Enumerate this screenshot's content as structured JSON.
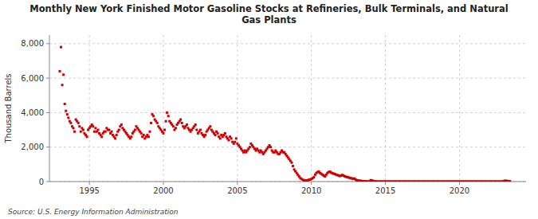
{
  "chart_data": {
    "type": "scatter",
    "title": "Monthly New York Finished Motor Gasoline Stocks at Refineries, Bulk Terminals, and Natural\nGas Plants",
    "y_label": "Thousand Barrels",
    "annotations": [
      "Source: U.S. Energy Information Administration"
    ],
    "color": "#cc0000",
    "marker": "square",
    "grid": true,
    "xlim": [
      1992.3,
      2024.5
    ],
    "ylim": [
      0,
      8500
    ],
    "xticks": [
      1995,
      2000,
      2005,
      2010,
      2015,
      2020
    ],
    "yticks": [
      0,
      {
        "value": 2000,
        "label": "2,000"
      },
      {
        "value": 4000,
        "label": "4,000"
      },
      {
        "value": 6000,
        "label": "6,000"
      },
      {
        "value": 8000,
        "label": "8,000"
      }
    ],
    "x": [
      1993,
      1993.0833333333333,
      1993.1666666666667,
      1993.25,
      1993.3333333333333,
      1993.4166666666667,
      1993.5,
      1993.5833333333333,
      1993.6666666666667,
      1993.75,
      1993.8333333333333,
      1993.9166666666667,
      1994,
      1994.0833333333333,
      1994.1666666666667,
      1994.25,
      1994.3333333333333,
      1994.4166666666667,
      1994.5,
      1994.5833333333333,
      1994.6666666666667,
      1994.75,
      1994.8333333333333,
      1994.9166666666667,
      1995,
      1995.0833333333333,
      1995.1666666666667,
      1995.25,
      1995.3333333333333,
      1995.4166666666667,
      1995.5,
      1995.5833333333333,
      1995.6666666666667,
      1995.75,
      1995.8333333333333,
      1995.9166666666667,
      1996,
      1996.0833333333333,
      1996.1666666666667,
      1996.25,
      1996.3333333333333,
      1996.4166666666667,
      1996.5,
      1996.5833333333333,
      1996.6666666666667,
      1996.75,
      1996.8333333333333,
      1996.9166666666667,
      1997,
      1997.0833333333333,
      1997.1666666666667,
      1997.25,
      1997.3333333333333,
      1997.4166666666667,
      1997.5,
      1997.5833333333333,
      1997.6666666666667,
      1997.75,
      1997.8333333333333,
      1997.9166666666667,
      1998,
      1998.0833333333333,
      1998.1666666666667,
      1998.25,
      1998.3333333333333,
      1998.4166666666667,
      1998.5,
      1998.5833333333333,
      1998.6666666666667,
      1998.75,
      1998.8333333333333,
      1998.9166666666667,
      1999,
      1999.0833333333333,
      1999.1666666666667,
      1999.25,
      1999.3333333333333,
      1999.4166666666667,
      1999.5,
      1999.5833333333333,
      1999.6666666666667,
      1999.75,
      1999.8333333333333,
      1999.9166666666667,
      2000,
      2000.0833333333333,
      2000.1666666666667,
      2000.25,
      2000.3333333333333,
      2000.4166666666667,
      2000.5,
      2000.5833333333333,
      2000.6666666666667,
      2000.75,
      2000.8333333333333,
      2000.9166666666667,
      2001,
      2001.0833333333333,
      2001.1666666666667,
      2001.25,
      2001.3333333333333,
      2001.4166666666667,
      2001.5,
      2001.5833333333333,
      2001.6666666666667,
      2001.75,
      2001.8333333333333,
      2001.9166666666667,
      2002,
      2002.0833333333333,
      2002.1666666666667,
      2002.25,
      2002.3333333333333,
      2002.4166666666667,
      2002.5,
      2002.5833333333333,
      2002.6666666666667,
      2002.75,
      2002.8333333333333,
      2002.9166666666667,
      2003,
      2003.0833333333333,
      2003.1666666666667,
      2003.25,
      2003.3333333333333,
      2003.4166666666667,
      2003.5,
      2003.5833333333333,
      2003.6666666666667,
      2003.75,
      2003.8333333333333,
      2003.9166666666667,
      2004,
      2004.0833333333333,
      2004.1666666666667,
      2004.25,
      2004.3333333333333,
      2004.4166666666667,
      2004.5,
      2004.5833333333333,
      2004.6666666666667,
      2004.75,
      2004.8333333333333,
      2004.9166666666667,
      2005,
      2005.0833333333333,
      2005.1666666666667,
      2005.25,
      2005.3333333333333,
      2005.4166666666667,
      2005.5,
      2005.5833333333333,
      2005.6666666666667,
      2005.75,
      2005.8333333333333,
      2005.9166666666667,
      2006,
      2006.0833333333333,
      2006.1666666666667,
      2006.25,
      2006.3333333333333,
      2006.4166666666667,
      2006.5,
      2006.5833333333333,
      2006.6666666666667,
      2006.75,
      2006.8333333333333,
      2006.9166666666667,
      2007,
      2007.0833333333333,
      2007.1666666666667,
      2007.25,
      2007.3333333333333,
      2007.4166666666667,
      2007.5,
      2007.5833333333333,
      2007.6666666666667,
      2007.75,
      2007.8333333333333,
      2007.9166666666667,
      2008,
      2008.0833333333333,
      2008.1666666666667,
      2008.25,
      2008.3333333333333,
      2008.4166666666667,
      2008.5,
      2008.5833333333333,
      2008.6666666666667,
      2008.75,
      2008.8333333333333,
      2008.9166666666667,
      2009,
      2009.0833333333333,
      2009.1666666666667,
      2009.25,
      2009.3333333333333,
      2009.4166666666667,
      2009.5,
      2009.5833333333333,
      2009.6666666666667,
      2009.75,
      2009.8333333333333,
      2009.9166666666667,
      2010,
      2010.0833333333333,
      2010.1666666666667,
      2010.25,
      2010.3333333333333,
      2010.4166666666667,
      2010.5,
      2010.5833333333333,
      2010.6666666666667,
      2010.75,
      2010.8333333333333,
      2010.9166666666667,
      2011,
      2011.0833333333333,
      2011.1666666666667,
      2011.25,
      2011.3333333333333,
      2011.4166666666667,
      2011.5,
      2011.5833333333333,
      2011.6666666666667,
      2011.75,
      2011.8333333333333,
      2011.9166666666667,
      2012,
      2012.0833333333333,
      2012.1666666666667,
      2012.25,
      2012.3333333333333,
      2012.4166666666667,
      2012.5,
      2012.5833333333333,
      2012.6666666666667,
      2012.75,
      2012.8333333333333,
      2012.9166666666667,
      2013,
      2013.0833333333333,
      2013.1666666666667,
      2013.25,
      2013.3333333333333,
      2013.4166666666667,
      2013.5,
      2013.5833333333333,
      2013.6666666666667,
      2013.75,
      2013.8333333333333,
      2013.9166666666667,
      2014,
      2014.0833333333333,
      2014.1666666666667,
      2014.25,
      2014.3333333333333,
      2014.4166666666667,
      2014.5,
      2014.5833333333333,
      2014.6666666666667,
      2014.75,
      2014.8333333333333,
      2014.9166666666667,
      2015,
      2015.0833333333333,
      2015.1666666666667,
      2015.25,
      2015.3333333333333,
      2015.4166666666667,
      2015.5,
      2015.5833333333333,
      2015.6666666666667,
      2015.75,
      2015.8333333333333,
      2015.9166666666667,
      2016,
      2016.0833333333333,
      2016.1666666666667,
      2016.25,
      2016.3333333333333,
      2016.4166666666667,
      2016.5,
      2016.5833333333333,
      2016.6666666666667,
      2016.75,
      2016.8333333333333,
      2016.9166666666667,
      2017,
      2017.0833333333333,
      2017.1666666666667,
      2017.25,
      2017.3333333333333,
      2017.4166666666667,
      2017.5,
      2017.5833333333333,
      2017.6666666666667,
      2017.75,
      2017.8333333333333,
      2017.9166666666667,
      2018,
      2018.0833333333333,
      2018.1666666666667,
      2018.25,
      2018.3333333333333,
      2018.4166666666667,
      2018.5,
      2018.5833333333333,
      2018.6666666666667,
      2018.75,
      2018.8333333333333,
      2018.9166666666667,
      2019,
      2019.0833333333333,
      2019.1666666666667,
      2019.25,
      2019.3333333333333,
      2019.4166666666667,
      2019.5,
      2019.5833333333333,
      2019.6666666666667,
      2019.75,
      2019.8333333333333,
      2019.9166666666667,
      2020,
      2020.0833333333333,
      2020.1666666666667,
      2020.25,
      2020.3333333333333,
      2020.4166666666667,
      2020.5,
      2020.5833333333333,
      2020.6666666666667,
      2020.75,
      2020.8333333333333,
      2020.9166666666667,
      2021,
      2021.0833333333333,
      2021.1666666666667,
      2021.25,
      2021.3333333333333,
      2021.4166666666667,
      2021.5,
      2021.5833333333333,
      2021.6666666666667,
      2021.75,
      2021.8333333333333,
      2021.9166666666667,
      2022,
      2022.0833333333333,
      2022.1666666666667,
      2022.25,
      2022.3333333333333,
      2022.4166666666667,
      2022.5,
      2022.5833333333333,
      2022.6666666666667,
      2022.75,
      2022.8333333333333,
      2022.9166666666667,
      2023,
      2023.0833333333333,
      2023.1666666666667,
      2023.25,
      2023.3333333333333,
      2023.4166666666667
    ],
    "values": [
      6400,
      7800,
      5600,
      6200,
      4500,
      4100,
      3900,
      3700,
      3500,
      3400,
      3200,
      3100,
      2900,
      3600,
      3500,
      3400,
      3200,
      2900,
      3100,
      3000,
      2800,
      2700,
      2600,
      3000,
      3100,
      3200,
      3300,
      3200,
      2900,
      3100,
      2900,
      3000,
      2800,
      2700,
      2600,
      2800,
      2900,
      2900,
      3100,
      3000,
      3000,
      2800,
      2900,
      2700,
      2600,
      2500,
      2700,
      2900,
      3000,
      3200,
      3300,
      3100,
      3000,
      2900,
      2800,
      2700,
      2600,
      2500,
      2600,
      2800,
      2900,
      3000,
      3200,
      3100,
      3000,
      2900,
      2800,
      2600,
      2700,
      2500,
      2600,
      2700,
      2600,
      2900,
      3400,
      3900,
      3800,
      3600,
      3500,
      3400,
      3200,
      3100,
      3000,
      2900,
      2800,
      3000,
      3500,
      4000,
      3800,
      3500,
      3400,
      3300,
      3200,
      3000,
      3100,
      3300,
      3400,
      3500,
      3600,
      3400,
      3200,
      3100,
      3200,
      3300,
      3100,
      3000,
      2900,
      3000,
      3100,
      3200,
      3300,
      3000,
      2800,
      2900,
      3000,
      2800,
      2700,
      2600,
      2700,
      2900,
      3000,
      3100,
      3200,
      3000,
      2900,
      2800,
      2700,
      2900,
      2800,
      2600,
      2500,
      2700,
      2600,
      2700,
      2800,
      2600,
      2500,
      2400,
      2600,
      2500,
      2300,
      2200,
      2300,
      2500,
      2200,
      2100,
      2000,
      1900,
      1800,
      1700,
      1800,
      1700,
      1800,
      1900,
      2000,
      2200,
      2100,
      2000,
      1900,
      1800,
      1900,
      1800,
      1700,
      1800,
      1700,
      1600,
      1700,
      1800,
      1900,
      2000,
      2100,
      2000,
      1800,
      1700,
      1700,
      1800,
      1700,
      1600,
      1600,
      1700,
      1800,
      1700,
      1700,
      1600,
      1500,
      1400,
      1300,
      1200,
      1100,
      900,
      700,
      600,
      500,
      400,
      300,
      200,
      150,
      100,
      80,
      60,
      50,
      80,
      100,
      120,
      150,
      200,
      250,
      400,
      500,
      550,
      580,
      500,
      450,
      400,
      350,
      300,
      400,
      500,
      550,
      580,
      520,
      480,
      460,
      440,
      400,
      380,
      350,
      320,
      350,
      380,
      350,
      300,
      280,
      260,
      240,
      220,
      200,
      180,
      160,
      180,
      100,
      80,
      60,
      50,
      40,
      30,
      25,
      20,
      15,
      10,
      8,
      5,
      80,
      60,
      40,
      20,
      10,
      5,
      3,
      2,
      1,
      2,
      1,
      1,
      1,
      1,
      1,
      1,
      1,
      1,
      1,
      1,
      1,
      1,
      1,
      1,
      1,
      1,
      1,
      1,
      1,
      1,
      1,
      1,
      1,
      1,
      1,
      1,
      1,
      1,
      1,
      1,
      1,
      1,
      1,
      1,
      1,
      1,
      1,
      1,
      1,
      1,
      1,
      1,
      1,
      1,
      1,
      1,
      1,
      1,
      1,
      1,
      1,
      1,
      1,
      1,
      1,
      1,
      1,
      1,
      1,
      1,
      1,
      1,
      1,
      1,
      1,
      1,
      1,
      1,
      1,
      1,
      1,
      1,
      1,
      1,
      1,
      1,
      1,
      1,
      1,
      1,
      1,
      1,
      1,
      1,
      1,
      1,
      1,
      1,
      1,
      1,
      1,
      1,
      1,
      1,
      1,
      1,
      1,
      1,
      30,
      50,
      40,
      30,
      20,
      15
    ]
  }
}
